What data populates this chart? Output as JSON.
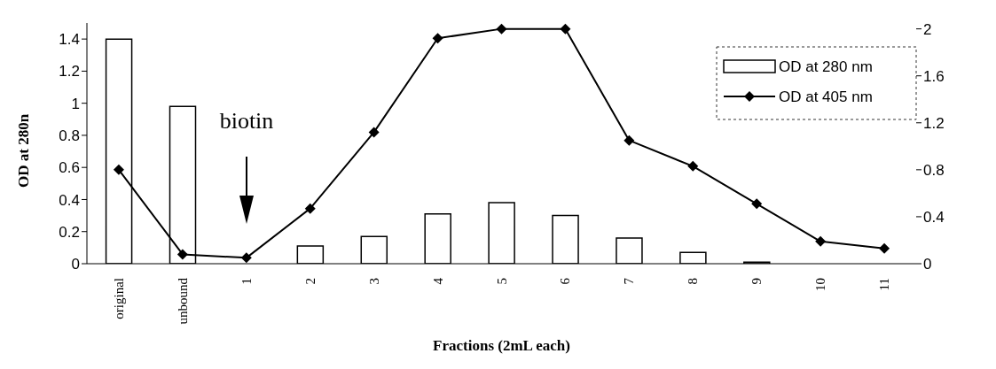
{
  "chart_data": {
    "type": "bar",
    "categories": [
      "original",
      "unbound",
      "1",
      "2",
      "3",
      "4",
      "5",
      "6",
      "7",
      "8",
      "9",
      "10",
      "11"
    ],
    "series": [
      {
        "name": "OD at 280 nm",
        "color": "#ffffff",
        "values": [
          1.4,
          0.98,
          null,
          0.11,
          0.17,
          0.31,
          0.38,
          0.3,
          0.16,
          0.07,
          0.01,
          null,
          null
        ]
      },
      {
        "name": "OD at 405 nm",
        "type": "line",
        "axis": "y2",
        "color": "#000000",
        "values": [
          0.8,
          0.08,
          0.05,
          0.47,
          1.12,
          1.92,
          2.0,
          2.0,
          1.05,
          0.83,
          0.51,
          0.19,
          0.13
        ]
      }
    ],
    "xlabel": "Fractions (2mL each)",
    "ylabel": "OD at 280n",
    "ylim": [
      0,
      1.5
    ],
    "yticks": [
      0,
      0.2,
      0.4,
      0.6,
      0.8,
      1,
      1.2,
      1.4
    ],
    "y2lim": [
      0,
      2.05
    ],
    "y2ticks": [
      0,
      0.4,
      0.8,
      1.2,
      1.6,
      2
    ],
    "annotations": [
      "biotin"
    ],
    "legend": "top right",
    "marker": "diamond",
    "line_style": "solid"
  }
}
